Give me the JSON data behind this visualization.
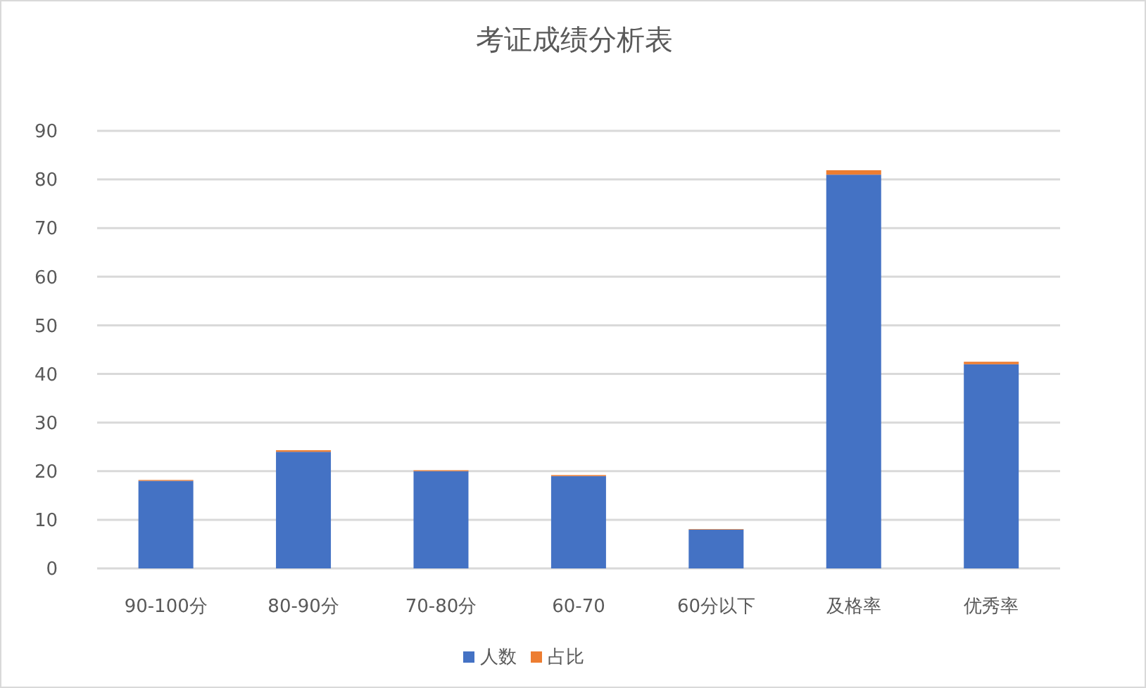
{
  "chart_data": {
    "type": "bar",
    "title": "考证成绩分析表",
    "categories": [
      "90-100分",
      "80-90分",
      "70-80分",
      "60-70",
      "60分以下",
      "及格率",
      "优秀率"
    ],
    "series": [
      {
        "name": "人数",
        "color": "#4472c4",
        "values": [
          18,
          24,
          20,
          19,
          8,
          81,
          42
        ]
      },
      {
        "name": "占比",
        "color": "#ed7d31",
        "values": [
          0.2,
          0.3,
          0.2,
          0.2,
          0.1,
          0.9,
          0.5
        ]
      }
    ],
    "stacked": true,
    "ylim": [
      0,
      90
    ],
    "yticks": [
      0,
      10,
      20,
      30,
      40,
      50,
      60,
      70,
      80,
      90
    ],
    "grid": "y",
    "legend": "bottom"
  }
}
